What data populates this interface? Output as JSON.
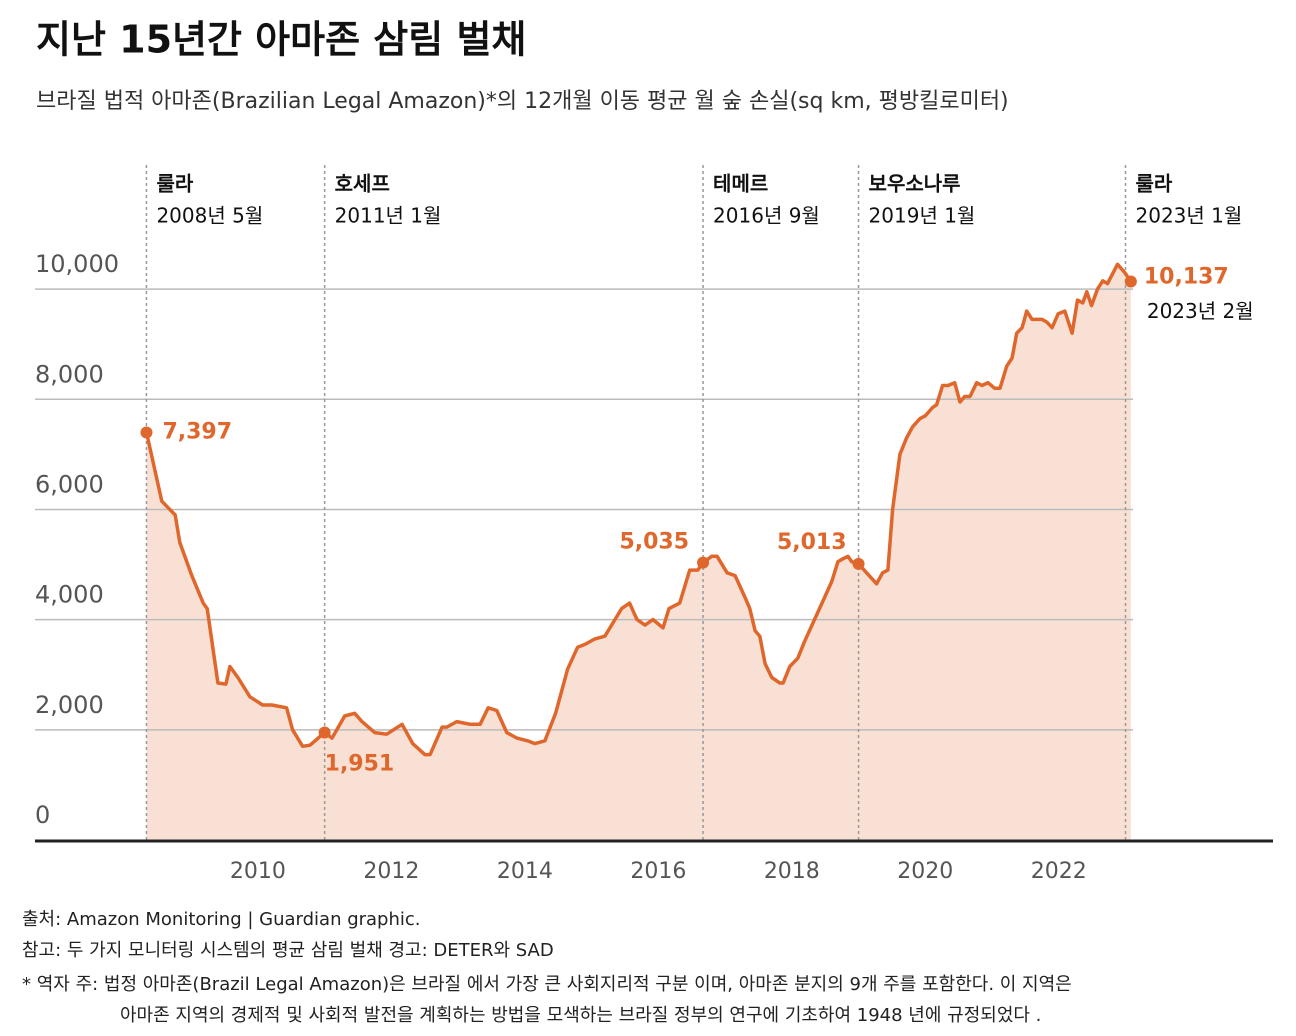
{
  "chart_data": {
    "type": "line",
    "title": "지난 15년간 아마존 삼림 벌채",
    "subtitle": "브라질 법적 아마존(Brazilian Legal Amazon)*의 12개월 이동 평균 월 숲 손실(sq km, 평방킬로미터)",
    "x": [
      2008.33,
      2008.56,
      2008.76,
      2008.83,
      2009.01,
      2009.18,
      2009.24,
      2009.4,
      2009.52,
      2009.58,
      2009.7,
      2009.88,
      2010.07,
      2010.21,
      2010.43,
      2010.52,
      2010.67,
      2010.78,
      2011.0,
      2011.11,
      2011.3,
      2011.45,
      2011.56,
      2011.75,
      2011.93,
      2012.16,
      2012.32,
      2012.5,
      2012.58,
      2012.76,
      2012.83,
      2012.98,
      2013.18,
      2013.33,
      2013.45,
      2013.58,
      2013.73,
      2013.88,
      2014.04,
      2014.15,
      2014.3,
      2014.46,
      2014.64,
      2014.79,
      2014.9,
      2015.05,
      2015.2,
      2015.3,
      2015.45,
      2015.57,
      2015.68,
      2015.8,
      2015.92,
      2016.07,
      2016.16,
      2016.32,
      2016.47,
      2016.59,
      2016.67,
      2016.8,
      2016.88,
      2017.03,
      2017.15,
      2017.3,
      2017.37,
      2017.45,
      2017.52,
      2017.6,
      2017.7,
      2017.82,
      2017.87,
      2017.97,
      2018.09,
      2018.19,
      2018.34,
      2018.49,
      2018.6,
      2018.69,
      2018.76,
      2018.84,
      2018.9,
      2019.0,
      2019.12,
      2019.27,
      2019.36,
      2019.44,
      2019.51,
      2019.62,
      2019.72,
      2019.81,
      2019.92,
      2020.0,
      2020.11,
      2020.17,
      2020.26,
      2020.34,
      2020.44,
      2020.52,
      2020.59,
      2020.67,
      2020.77,
      2020.85,
      2020.94,
      2021.04,
      2021.12,
      2021.22,
      2021.3,
      2021.37,
      2021.45,
      2021.52,
      2021.6,
      2021.75,
      2021.82,
      2021.9,
      2021.99,
      2022.09,
      2022.2,
      2022.28,
      2022.36,
      2022.42,
      2022.49,
      2022.58,
      2022.66,
      2022.73,
      2022.88,
      2022.99,
      2023.08
    ],
    "series": [
      {
        "color": "#e0672c",
        "fill": "#f9e0d4",
        "values": [
          7397,
          6150,
          5900,
          5400,
          4800,
          4300,
          4200,
          2850,
          2830,
          3150,
          2950,
          2600,
          2450,
          2450,
          2400,
          2000,
          1700,
          1720,
          1951,
          1850,
          2250,
          2300,
          2150,
          1950,
          1920,
          2100,
          1750,
          1550,
          1550,
          2050,
          2050,
          2150,
          2100,
          2100,
          2400,
          2350,
          1950,
          1850,
          1800,
          1750,
          1800,
          2300,
          3100,
          3500,
          3550,
          3650,
          3700,
          3900,
          4200,
          4300,
          4000,
          3900,
          4000,
          3850,
          4200,
          4300,
          4900,
          4900,
          5035,
          5150,
          5150,
          4850,
          4800,
          4400,
          4200,
          3800,
          3700,
          3200,
          2950,
          2850,
          2850,
          3150,
          3300,
          3600,
          4000,
          4400,
          4700,
          5050,
          5100,
          5150,
          5050,
          5013,
          4850,
          4650,
          4850,
          4900,
          6000,
          7000,
          7300,
          7500,
          7650,
          7700,
          7850,
          7900,
          8250,
          8250,
          8300,
          7950,
          8050,
          8050,
          8300,
          8250,
          8300,
          8200,
          8200,
          8600,
          8750,
          9200,
          9300,
          9600,
          9450,
          9450,
          9400,
          9300,
          9550,
          9600,
          9200,
          9800,
          9750,
          9950,
          9700,
          10000,
          10150,
          10100,
          10450,
          10300,
          10137
        ]
      }
    ],
    "highlights": [
      {
        "index": 0,
        "label": "7,397"
      },
      {
        "index": 18,
        "label": "1,951"
      },
      {
        "index": 58,
        "label": "5,035"
      },
      {
        "index": 81,
        "label": "5,013"
      },
      {
        "index": 126,
        "label": "10,137",
        "note": "2023년 2월"
      }
    ],
    "annotations": [
      {
        "x": 2008.33,
        "label": "룰라",
        "date": "2008년 5월"
      },
      {
        "x": 2011.0,
        "label": "호세프",
        "date": "2011년 1월"
      },
      {
        "x": 2016.67,
        "label": "테메르",
        "date": "2016년 9월"
      },
      {
        "x": 2019.0,
        "label": "보우소나루",
        "date": "2019년 1월"
      },
      {
        "x": 2023.0,
        "label": "룰라",
        "date": "2023년 1월"
      }
    ],
    "xlim": [
      2006.66,
      2025.21
    ],
    "xticks": [
      2010,
      2012,
      2014,
      2016,
      2018,
      2020,
      2022
    ],
    "ylim": [
      0,
      11000
    ],
    "yticks": [
      0,
      {
        "value": 2000,
        "label": "2,000"
      },
      {
        "value": 4000,
        "label": "4,000"
      },
      {
        "value": 6000,
        "label": "6,000"
      },
      {
        "value": 8000,
        "label": "8,000"
      },
      {
        "value": 10000,
        "label": "10,000"
      }
    ],
    "grid": true,
    "source": "출처: Amazon Monitoring | Guardian graphic.",
    "note": "참고: 두 가지 모니터링 시스템의 평균 삼림 벌채 경고: DETER와 SAD",
    "footnote": [
      "* 역자 주: 법정 아마존(Brazil Legal Amazon)은 브라질 에서 가장 큰 사회지리적 구분 이며, 아마존 분지의 9개 주를 포함한다. 이 지역은",
      "아마존 지역의 경제적 및 사회적 발전을 계획하는 방법을 모색하는 브라질 정부의 연구에 기초하여 1948 년에 규정되었다 ."
    ]
  }
}
